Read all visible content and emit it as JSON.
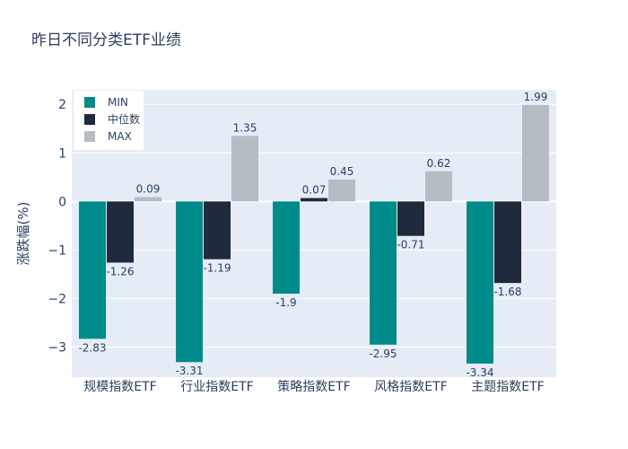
{
  "chart_data": {
    "type": "bar",
    "title": "昨日不同分类ETF业绩",
    "xlabel": "",
    "ylabel": "涨跌幅(%)",
    "categories": [
      "规模指数ETF",
      "行业指数ETF",
      "策略指数ETF",
      "风格指数ETF",
      "主题指数ETF"
    ],
    "series": [
      {
        "name": "MIN",
        "color": "#008b8b",
        "values": [
          -2.83,
          -3.31,
          -1.9,
          -2.95,
          -3.34
        ]
      },
      {
        "name": "中位数",
        "color": "#1f2a3c",
        "values": [
          -1.26,
          -1.19,
          0.07,
          -0.71,
          -1.68
        ]
      },
      {
        "name": "MAX",
        "color": "#b5bcc4",
        "values": [
          0.09,
          1.35,
          0.45,
          0.62,
          1.99
        ]
      }
    ],
    "ylim": [
      -3.62,
      2.3
    ],
    "yticks": [
      2,
      1,
      0,
      -1,
      -2,
      -3
    ],
    "ytick_labels": [
      "2",
      "1",
      "0",
      "−1",
      "−2",
      "−3"
    ],
    "grid": true,
    "legend_position": "top-left",
    "plot_bgcolor": "#e5ecf6"
  }
}
